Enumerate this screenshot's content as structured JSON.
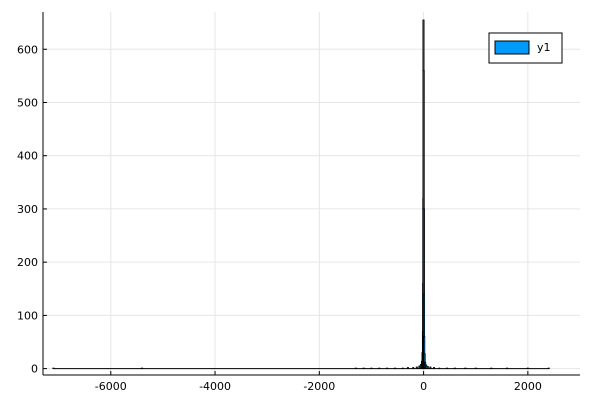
{
  "chart_data": {
    "type": "bar",
    "title": "",
    "xlabel": "",
    "ylabel": "",
    "xlim": [
      -7300,
      3000
    ],
    "ylim": [
      -12,
      670
    ],
    "xticks": [
      -6000,
      -4000,
      -2000,
      0,
      2000
    ],
    "yticks": [
      0,
      100,
      200,
      300,
      400,
      500,
      600
    ],
    "xtick_labels": [
      "-6000",
      "-4000",
      "-2000",
      "0",
      "2000"
    ],
    "ytick_labels": [
      "0",
      "100",
      "200",
      "300",
      "400",
      "500",
      "600"
    ],
    "grid": true,
    "legend": {
      "position": "top-right",
      "entries": [
        "y1"
      ]
    },
    "series": [
      {
        "name": "y1",
        "color": "#009af9",
        "edge_color": "#000000",
        "bins": [
          {
            "x": -7100,
            "value": 1
          },
          {
            "x": -5400,
            "value": 1
          },
          {
            "x": -1300,
            "value": 1
          },
          {
            "x": -1150,
            "value": 1
          },
          {
            "x": -1000,
            "value": 1
          },
          {
            "x": -850,
            "value": 1
          },
          {
            "x": -700,
            "value": 1
          },
          {
            "x": -550,
            "value": 1
          },
          {
            "x": -400,
            "value": 1
          },
          {
            "x": -300,
            "value": 2
          },
          {
            "x": -200,
            "value": 2
          },
          {
            "x": -130,
            "value": 3
          },
          {
            "x": -80,
            "value": 5
          },
          {
            "x": -50,
            "value": 8
          },
          {
            "x": -30,
            "value": 14
          },
          {
            "x": -20,
            "value": 30
          },
          {
            "x": -12,
            "value": 70
          },
          {
            "x": -8,
            "value": 160
          },
          {
            "x": -5,
            "value": 320
          },
          {
            "x": -2,
            "value": 655
          },
          {
            "x": 2,
            "value": 560
          },
          {
            "x": 5,
            "value": 300
          },
          {
            "x": 8,
            "value": 140
          },
          {
            "x": 12,
            "value": 60
          },
          {
            "x": 20,
            "value": 28
          },
          {
            "x": 30,
            "value": 12
          },
          {
            "x": 50,
            "value": 7
          },
          {
            "x": 80,
            "value": 4
          },
          {
            "x": 130,
            "value": 3
          },
          {
            "x": 200,
            "value": 2
          },
          {
            "x": 300,
            "value": 1
          },
          {
            "x": 450,
            "value": 1
          },
          {
            "x": 600,
            "value": 1
          },
          {
            "x": 800,
            "value": 1
          },
          {
            "x": 1000,
            "value": 1
          },
          {
            "x": 1300,
            "value": 1
          },
          {
            "x": 1600,
            "value": 1
          },
          {
            "x": 2000,
            "value": 1
          },
          {
            "x": 2400,
            "value": 1
          }
        ]
      }
    ]
  }
}
